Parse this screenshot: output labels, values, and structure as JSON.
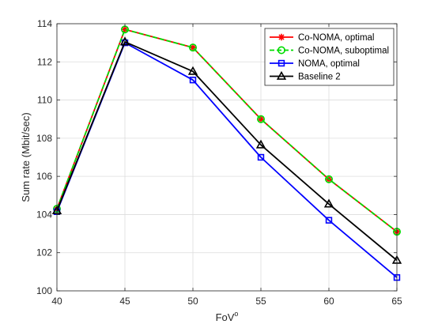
{
  "chart_data": {
    "type": "line",
    "xlabel": "FoV",
    "xlabel_sup": "o",
    "ylabel": "Sum rate (Mbit/sec)",
    "xlim": [
      40,
      65
    ],
    "ylim": [
      100,
      114
    ],
    "xticks": [
      40,
      45,
      50,
      55,
      60,
      65
    ],
    "yticks": [
      100,
      102,
      104,
      106,
      108,
      110,
      112,
      114
    ],
    "grid": true,
    "legend_position": "top-right",
    "x": [
      40,
      45,
      50,
      55,
      60,
      65
    ],
    "series": [
      {
        "name": "Co-NOMA, optimal",
        "values": [
          104.3,
          113.7,
          112.75,
          109.0,
          105.85,
          103.1
        ],
        "color": "#ff0000",
        "marker": "asterisk",
        "dash": "solid"
      },
      {
        "name": "Co-NOMA, suboptimal",
        "values": [
          104.3,
          113.7,
          112.75,
          109.0,
          105.85,
          103.1
        ],
        "color": "#00dd00",
        "marker": "circle",
        "dash": "dashed"
      },
      {
        "name": "NOMA, optimal",
        "values": [
          104.15,
          113.0,
          111.05,
          107.0,
          103.7,
          100.7
        ],
        "color": "#0000ff",
        "marker": "square",
        "dash": "solid"
      },
      {
        "name": "Baseline 2",
        "values": [
          104.2,
          113.05,
          111.5,
          107.65,
          104.55,
          101.6
        ],
        "color": "#000000",
        "marker": "triangle",
        "dash": "solid"
      }
    ]
  }
}
